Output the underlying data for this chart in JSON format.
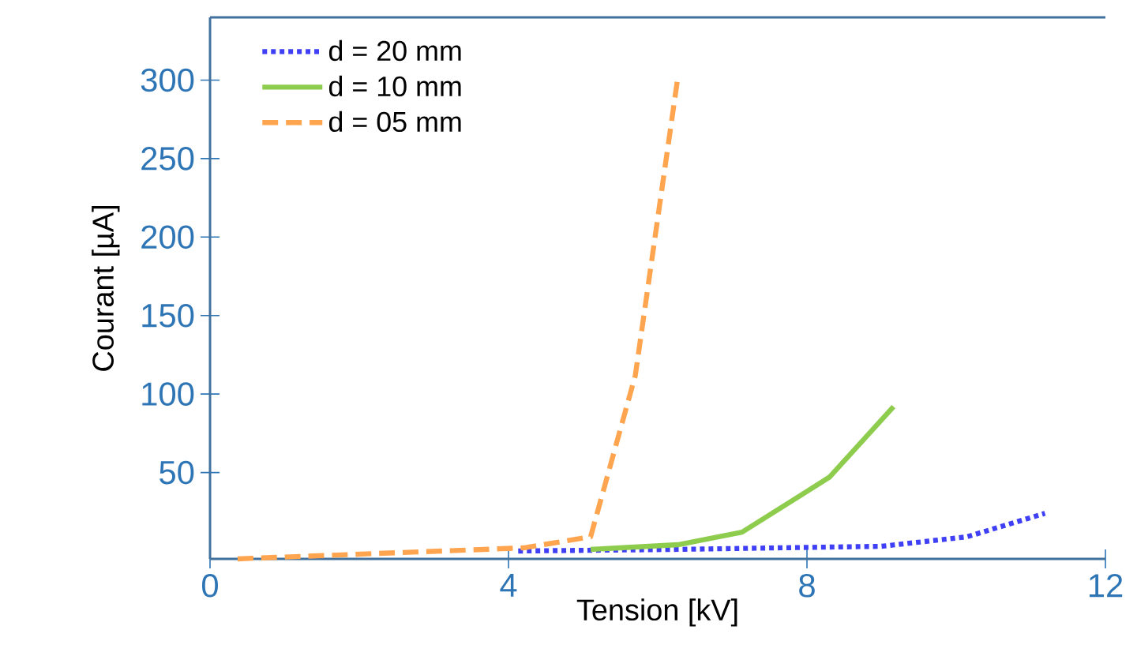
{
  "chart_data": {
    "type": "line",
    "xlabel": "Tension [kV]",
    "ylabel": "Courant [µA]",
    "xlim": [
      0,
      12
    ],
    "ylim": [
      -5,
      340
    ],
    "xticks": [
      0,
      4,
      8,
      12
    ],
    "yticks": [
      50,
      100,
      150,
      200,
      250,
      300
    ],
    "legend": "top left",
    "grid": false,
    "marker": "none",
    "series": [
      {
        "name": "d = 20 mm",
        "color": "#3f3ff5",
        "line_style": "dotted",
        "x": [
          4.13,
          6.2,
          9.0,
          10.14,
          11.19
        ],
        "values": [
          0,
          1,
          3,
          9,
          24
        ]
      },
      {
        "name": "d = 10 mm",
        "color": "#8dcc4c",
        "line_style": "solid",
        "x": [
          5.1,
          6.27,
          7.13,
          8.3,
          9.16
        ],
        "values": [
          1,
          4,
          12,
          47,
          92
        ]
      },
      {
        "name": "d = 05 mm",
        "color": "#ffa54f",
        "line_style": "dashed",
        "x": [
          0.37,
          4.2,
          5.1,
          5.7,
          6.27
        ],
        "values": [
          -5,
          2,
          9,
          112,
          302
        ]
      }
    ]
  }
}
